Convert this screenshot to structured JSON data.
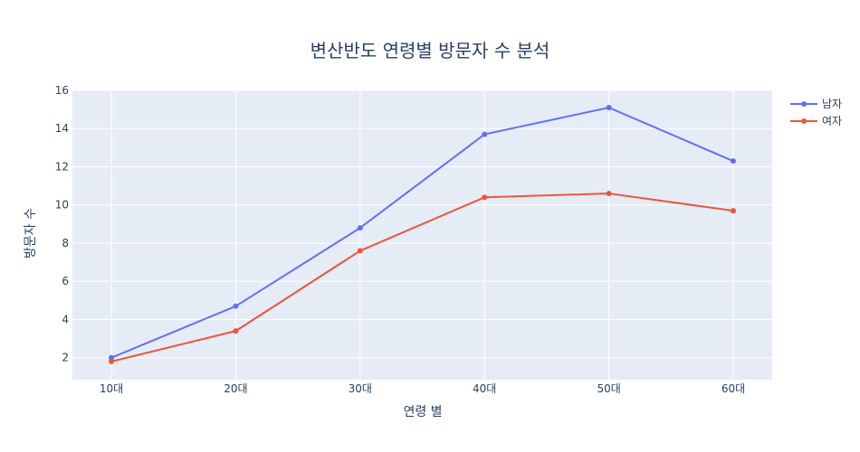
{
  "chart_data": {
    "type": "line",
    "title": "변산반도 연령별 방문자 수 분석",
    "xlabel": "연령 별",
    "ylabel": "방문자 수",
    "categories": [
      "10대",
      "20대",
      "30대",
      "40대",
      "50대",
      "60대"
    ],
    "ylim": [
      0.85,
      16
    ],
    "yticks": [
      2,
      4,
      6,
      8,
      10,
      12,
      14,
      16
    ],
    "grid": true,
    "legend_position": "top-right",
    "series": [
      {
        "name": "남자",
        "color": "#636efa",
        "values": [
          2.0,
          4.7,
          8.8,
          13.7,
          15.1,
          12.3
        ]
      },
      {
        "name": "여자",
        "color": "#ef553b",
        "values": [
          1.8,
          3.4,
          7.6,
          10.4,
          10.6,
          9.7
        ]
      }
    ],
    "plot_background": "#e5ecf6",
    "grid_color": "#ffffff"
  }
}
